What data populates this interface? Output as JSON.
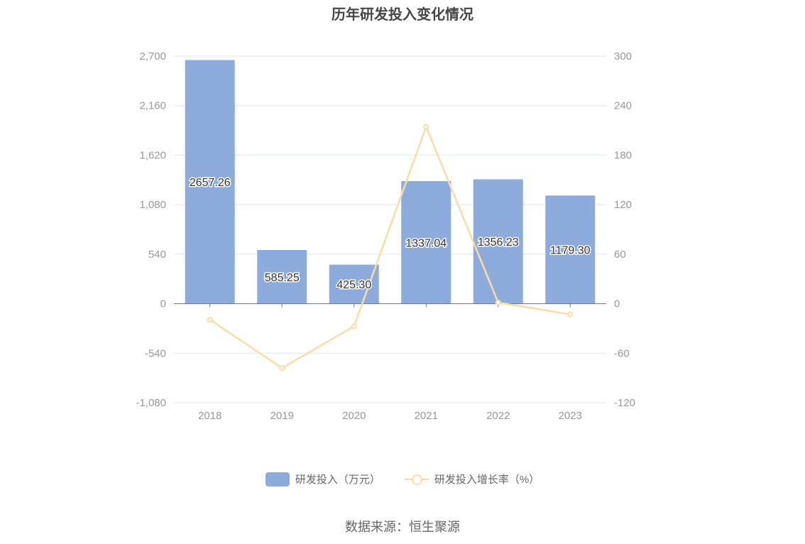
{
  "chart_data": {
    "type": "bar",
    "title": "历年研发投入变化情况",
    "categories": [
      "2018",
      "2019",
      "2020",
      "2021",
      "2022",
      "2023"
    ],
    "series": [
      {
        "name": "研发投入（万元）",
        "type": "bar",
        "axis": "left",
        "values": [
          2657.26,
          585.25,
          425.3,
          1337.04,
          1356.23,
          1179.3
        ],
        "labels": [
          "2657.26",
          "585.25",
          "425.30",
          "1337.04",
          "1356.23",
          "1179.30"
        ]
      },
      {
        "name": "研发投入增长率（%）",
        "type": "line",
        "axis": "right",
        "values": [
          -19.5,
          -78.0,
          -27.3,
          214.4,
          1.4,
          -13.0
        ]
      }
    ],
    "left_axis": {
      "ylim": [
        -1080,
        2700
      ],
      "ticks": [
        -1080,
        -540,
        0,
        540,
        1080,
        1620,
        2160,
        2700
      ],
      "tick_labels": [
        "-1,080",
        "-540",
        "0",
        "540",
        "1,080",
        "1,620",
        "2,160",
        "2,700"
      ]
    },
    "right_axis": {
      "ylim": [
        -120,
        300
      ],
      "ticks": [
        -120,
        -60,
        0,
        60,
        120,
        180,
        240,
        300
      ],
      "tick_labels": [
        "-120",
        "-60",
        "0",
        "60",
        "120",
        "180",
        "240",
        "300"
      ]
    },
    "grid": true,
    "legend_position": "bottom",
    "colors": {
      "bar": "#8eacdb",
      "line": "#fcdca4",
      "grid": "#e0e6f1",
      "axis": "#6e7079"
    }
  },
  "legend": {
    "bar_label": "研发投入（万元）",
    "line_label": "研发投入增长率（%）"
  },
  "source_text": "数据来源：恒生聚源"
}
